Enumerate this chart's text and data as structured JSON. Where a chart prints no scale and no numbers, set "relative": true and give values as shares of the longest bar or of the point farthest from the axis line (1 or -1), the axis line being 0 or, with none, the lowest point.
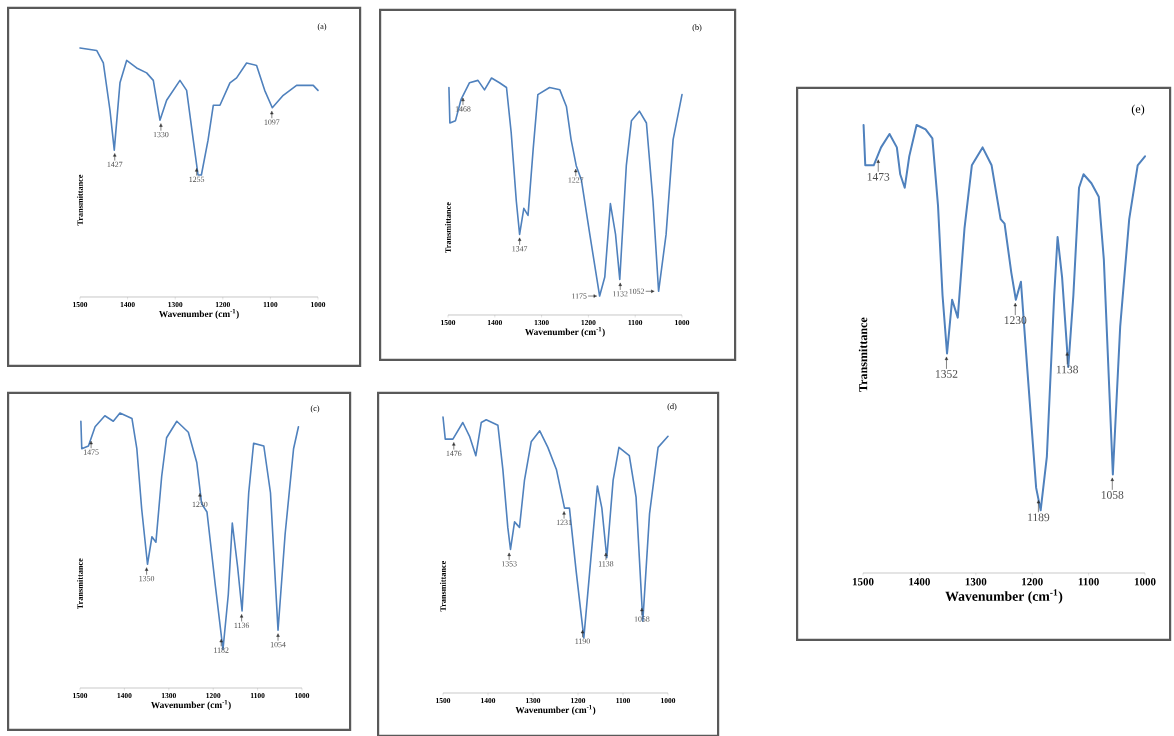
{
  "chart_data": [
    {
      "type": "line",
      "title": "(a)",
      "xlabel": "Wavenumber (cm$^{-1}$)",
      "ylabel": "Transmittance",
      "relative": true,
      "color": "#4f81bd",
      "xlim": [
        1500,
        1000
      ],
      "xticks": [
        1500,
        1400,
        1300,
        1200,
        1100,
        1000
      ],
      "x": [
        1500,
        1465,
        1451,
        1437,
        1428,
        1416,
        1402,
        1381,
        1360,
        1346,
        1332,
        1318,
        1290,
        1276,
        1262,
        1252,
        1245,
        1231,
        1220,
        1206,
        1185,
        1171,
        1150,
        1129,
        1112,
        1096,
        1073,
        1045,
        1010,
        1000
      ],
      "values": [
        1.0,
        0.99,
        0.94,
        0.75,
        0.59,
        0.86,
        0.95,
        0.92,
        0.9,
        0.87,
        0.71,
        0.79,
        0.87,
        0.83,
        0.63,
        0.49,
        0.49,
        0.63,
        0.77,
        0.77,
        0.86,
        0.88,
        0.94,
        0.93,
        0.83,
        0.76,
        0.81,
        0.85,
        0.85,
        0.83
      ],
      "annotations": [
        {
          "text": "1427",
          "x": 1427,
          "y": 0.59
        },
        {
          "text": "1330",
          "x": 1330,
          "y": 0.71
        },
        {
          "text": "1255",
          "x": 1255,
          "y": 0.53
        },
        {
          "text": "1097",
          "x": 1097,
          "y": 0.76
        }
      ]
    },
    {
      "type": "line",
      "title": "(b)",
      "xlabel": "Wavenumber (cm$^{-1}$)",
      "ylabel": "Transmittance",
      "relative": true,
      "color": "#4f81bd",
      "xlim": [
        1500,
        1000
      ],
      "xticks": [
        1500,
        1400,
        1300,
        1200,
        1100,
        1000
      ],
      "x": [
        1498,
        1496,
        1484,
        1472,
        1454,
        1436,
        1422,
        1407,
        1390,
        1375,
        1365,
        1354,
        1347,
        1338,
        1329,
        1318,
        1308,
        1283,
        1261,
        1247,
        1237,
        1226,
        1215,
        1197,
        1176,
        1165,
        1153,
        1142,
        1133,
        1119,
        1108,
        1091,
        1076,
        1062,
        1050,
        1034,
        1019,
        1000
      ],
      "values": [
        0.96,
        0.81,
        0.82,
        0.91,
        0.98,
        0.99,
        0.95,
        1.0,
        0.98,
        0.96,
        0.77,
        0.48,
        0.34,
        0.45,
        0.42,
        0.7,
        0.93,
        0.96,
        0.95,
        0.88,
        0.74,
        0.63,
        0.57,
        0.34,
        0.08,
        0.16,
        0.47,
        0.34,
        0.15,
        0.63,
        0.82,
        0.86,
        0.81,
        0.48,
        0.1,
        0.34,
        0.74,
        0.93
      ],
      "annotations": [
        {
          "text": "1468",
          "x": 1468,
          "y": 0.93
        },
        {
          "text": "1347",
          "x": 1347,
          "y": 0.34
        },
        {
          "text": "1227",
          "x": 1227,
          "y": 0.63
        },
        {
          "text": "1175",
          "x": 1175,
          "y": 0.08
        },
        {
          "text": "1132",
          "x": 1132,
          "y": 0.15
        },
        {
          "text": "1052",
          "x": 1052,
          "y": 0.1
        }
      ]
    },
    {
      "type": "line",
      "title": "(c)",
      "xlabel": "Wavenumber (cm$^{-1}$)",
      "ylabel": "Transmittance",
      "relative": true,
      "color": "#4f81bd",
      "xlim": [
        1500,
        1000
      ],
      "xticks": [
        1500,
        1400,
        1300,
        1200,
        1100,
        1000
      ],
      "x": [
        1498,
        1496,
        1481,
        1466,
        1444,
        1425,
        1410,
        1383,
        1372,
        1361,
        1348,
        1338,
        1329,
        1316,
        1305,
        1282,
        1256,
        1237,
        1226,
        1214,
        1195,
        1178,
        1166,
        1157,
        1145,
        1135,
        1120,
        1109,
        1086,
        1071,
        1054,
        1038,
        1019,
        1008
      ],
      "values": [
        0.97,
        0.87,
        0.88,
        0.95,
        0.99,
        0.97,
        1.0,
        0.98,
        0.87,
        0.65,
        0.45,
        0.55,
        0.53,
        0.77,
        0.91,
        0.97,
        0.93,
        0.82,
        0.67,
        0.64,
        0.37,
        0.14,
        0.34,
        0.6,
        0.44,
        0.28,
        0.71,
        0.89,
        0.88,
        0.71,
        0.21,
        0.56,
        0.87,
        0.95
      ],
      "annotations": [
        {
          "text": "1475",
          "x": 1475,
          "y": 0.91
        },
        {
          "text": "1350",
          "x": 1350,
          "y": 0.45
        },
        {
          "text": "1230",
          "x": 1230,
          "y": 0.72
        },
        {
          "text": "1182",
          "x": 1182,
          "y": 0.19
        },
        {
          "text": "1136",
          "x": 1136,
          "y": 0.28
        },
        {
          "text": "1054",
          "x": 1054,
          "y": 0.21
        }
      ]
    },
    {
      "type": "line",
      "title": "(d)",
      "xlabel": "Wavenumber (cm$^{-1}$)",
      "ylabel": "Transmittance",
      "relative": true,
      "color": "#4f81bd",
      "xlim": [
        1500,
        1000
      ],
      "xticks": [
        1500,
        1400,
        1300,
        1200,
        1100,
        1000
      ],
      "x": [
        1500,
        1495,
        1478,
        1456,
        1441,
        1427,
        1415,
        1404,
        1378,
        1367,
        1356,
        1350,
        1341,
        1330,
        1319,
        1304,
        1285,
        1267,
        1248,
        1230,
        1219,
        1204,
        1187,
        1174,
        1157,
        1147,
        1136,
        1122,
        1109,
        1086,
        1071,
        1056,
        1041,
        1022,
        1000
      ],
      "values": [
        1.0,
        0.92,
        0.92,
        0.98,
        0.93,
        0.86,
        0.98,
        0.99,
        0.97,
        0.81,
        0.6,
        0.52,
        0.62,
        0.6,
        0.77,
        0.91,
        0.95,
        0.89,
        0.81,
        0.67,
        0.67,
        0.44,
        0.2,
        0.44,
        0.75,
        0.67,
        0.49,
        0.77,
        0.89,
        0.86,
        0.71,
        0.26,
        0.65,
        0.89,
        0.93
      ],
      "annotations": [
        {
          "text": "1476",
          "x": 1476,
          "y": 0.92
        },
        {
          "text": "1353",
          "x": 1353,
          "y": 0.52
        },
        {
          "text": "1231",
          "x": 1231,
          "y": 0.67
        },
        {
          "text": "1190",
          "x": 1190,
          "y": 0.24
        },
        {
          "text": "1138",
          "x": 1138,
          "y": 0.52
        },
        {
          "text": "1058",
          "x": 1058,
          "y": 0.32
        }
      ]
    },
    {
      "type": "line",
      "title": "(e)",
      "xlabel": "Wavenumber (cm$^{-1}$)",
      "ylabel": "Transmittance",
      "relative": true,
      "color": "#4f81bd",
      "xlim": [
        1500,
        1000
      ],
      "xticks": [
        1500,
        1400,
        1300,
        1200,
        1100,
        1000
      ],
      "x": [
        1499,
        1496,
        1481,
        1468,
        1453,
        1440,
        1434,
        1426,
        1418,
        1405,
        1389,
        1377,
        1367,
        1359,
        1351,
        1342,
        1332,
        1320,
        1307,
        1288,
        1272,
        1256,
        1249,
        1237,
        1229,
        1220,
        1209,
        1193,
        1185,
        1174,
        1161,
        1155,
        1147,
        1136,
        1127,
        1117,
        1109,
        1095,
        1082,
        1073,
        1057,
        1044,
        1028,
        1013,
        1000
      ],
      "values": [
        1.0,
        0.91,
        0.91,
        0.95,
        0.98,
        0.95,
        0.89,
        0.86,
        0.93,
        1.0,
        0.99,
        0.97,
        0.82,
        0.62,
        0.49,
        0.61,
        0.57,
        0.77,
        0.91,
        0.95,
        0.91,
        0.79,
        0.78,
        0.67,
        0.61,
        0.65,
        0.46,
        0.19,
        0.14,
        0.26,
        0.62,
        0.75,
        0.66,
        0.46,
        0.62,
        0.86,
        0.89,
        0.87,
        0.84,
        0.7,
        0.22,
        0.55,
        0.79,
        0.91,
        0.93
      ],
      "annotations": [
        {
          "text": "1473",
          "x": 1473,
          "y": 0.93
        },
        {
          "text": "1352",
          "x": 1352,
          "y": 0.49
        },
        {
          "text": "1230",
          "x": 1230,
          "y": 0.61
        },
        {
          "text": "1189",
          "x": 1189,
          "y": 0.17
        },
        {
          "text": "1138",
          "x": 1138,
          "y": 0.5
        },
        {
          "text": "1058",
          "x": 1058,
          "y": 0.22
        }
      ]
    }
  ]
}
